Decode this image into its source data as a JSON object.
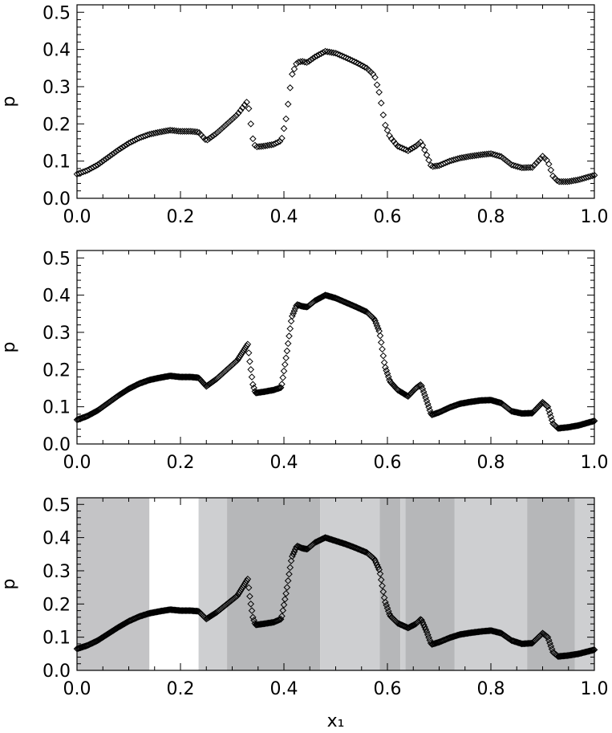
{
  "chart_data": [
    {
      "type": "scatter",
      "marker": "diamond-open",
      "ylabel": "p",
      "xlabel": "",
      "xlim": [
        0,
        1
      ],
      "ylim": [
        0,
        0.52
      ],
      "xticks": [
        "0.0",
        "0.2",
        "0.4",
        "0.6",
        "0.8",
        "1.0"
      ],
      "yticks": [
        "0.0",
        "0.1",
        "0.2",
        "0.3",
        "0.4",
        "0.5"
      ],
      "points_per_unit": 250,
      "profile": [
        [
          0,
          0.065
        ],
        [
          0.02,
          0.075
        ],
        [
          0.04,
          0.09
        ],
        [
          0.06,
          0.11
        ],
        [
          0.08,
          0.13
        ],
        [
          0.1,
          0.148
        ],
        [
          0.12,
          0.162
        ],
        [
          0.14,
          0.172
        ],
        [
          0.16,
          0.178
        ],
        [
          0.18,
          0.183
        ],
        [
          0.2,
          0.18
        ],
        [
          0.22,
          0.18
        ],
        [
          0.235,
          0.178
        ],
        [
          0.25,
          0.155
        ],
        [
          0.27,
          0.175
        ],
        [
          0.29,
          0.2
        ],
        [
          0.31,
          0.225
        ],
        [
          0.33,
          0.262
        ],
        [
          0.335,
          0.21
        ],
        [
          0.34,
          0.16
        ],
        [
          0.345,
          0.138
        ],
        [
          0.36,
          0.14
        ],
        [
          0.38,
          0.145
        ],
        [
          0.395,
          0.155
        ],
        [
          0.405,
          0.22
        ],
        [
          0.415,
          0.33
        ],
        [
          0.425,
          0.365
        ],
        [
          0.435,
          0.368
        ],
        [
          0.445,
          0.365
        ],
        [
          0.46,
          0.38
        ],
        [
          0.48,
          0.395
        ],
        [
          0.5,
          0.39
        ],
        [
          0.52,
          0.378
        ],
        [
          0.54,
          0.365
        ],
        [
          0.56,
          0.35
        ],
        [
          0.575,
          0.33
        ],
        [
          0.585,
          0.28
        ],
        [
          0.595,
          0.2
        ],
        [
          0.605,
          0.165
        ],
        [
          0.62,
          0.14
        ],
        [
          0.64,
          0.128
        ],
        [
          0.655,
          0.14
        ],
        [
          0.665,
          0.152
        ],
        [
          0.675,
          0.12
        ],
        [
          0.685,
          0.085
        ],
        [
          0.7,
          0.088
        ],
        [
          0.72,
          0.1
        ],
        [
          0.74,
          0.108
        ],
        [
          0.76,
          0.113
        ],
        [
          0.78,
          0.117
        ],
        [
          0.8,
          0.12
        ],
        [
          0.82,
          0.112
        ],
        [
          0.84,
          0.09
        ],
        [
          0.86,
          0.082
        ],
        [
          0.88,
          0.083
        ],
        [
          0.9,
          0.113
        ],
        [
          0.91,
          0.1
        ],
        [
          0.92,
          0.06
        ],
        [
          0.93,
          0.045
        ],
        [
          0.95,
          0.045
        ],
        [
          0.97,
          0.05
        ],
        [
          1.0,
          0.062
        ]
      ],
      "shaded_bands": []
    },
    {
      "type": "scatter",
      "marker": "diamond-open",
      "ylabel": "p",
      "xlabel": "",
      "xlim": [
        0,
        1
      ],
      "ylim": [
        0,
        0.52
      ],
      "xticks": [
        "0.0",
        "0.2",
        "0.4",
        "0.6",
        "0.8",
        "1.0"
      ],
      "yticks": [
        "0.0",
        "0.1",
        "0.2",
        "0.3",
        "0.4",
        "0.5"
      ],
      "points_per_unit": 500,
      "profile": [
        [
          0,
          0.065
        ],
        [
          0.02,
          0.075
        ],
        [
          0.04,
          0.09
        ],
        [
          0.06,
          0.11
        ],
        [
          0.08,
          0.13
        ],
        [
          0.1,
          0.148
        ],
        [
          0.12,
          0.162
        ],
        [
          0.14,
          0.172
        ],
        [
          0.16,
          0.178
        ],
        [
          0.18,
          0.183
        ],
        [
          0.2,
          0.18
        ],
        [
          0.22,
          0.18
        ],
        [
          0.235,
          0.178
        ],
        [
          0.25,
          0.155
        ],
        [
          0.27,
          0.175
        ],
        [
          0.29,
          0.2
        ],
        [
          0.31,
          0.225
        ],
        [
          0.33,
          0.268
        ],
        [
          0.335,
          0.21
        ],
        [
          0.34,
          0.16
        ],
        [
          0.345,
          0.137
        ],
        [
          0.36,
          0.14
        ],
        [
          0.38,
          0.145
        ],
        [
          0.395,
          0.152
        ],
        [
          0.405,
          0.24
        ],
        [
          0.415,
          0.34
        ],
        [
          0.425,
          0.375
        ],
        [
          0.435,
          0.37
        ],
        [
          0.445,
          0.368
        ],
        [
          0.46,
          0.385
        ],
        [
          0.48,
          0.4
        ],
        [
          0.5,
          0.392
        ],
        [
          0.52,
          0.38
        ],
        [
          0.54,
          0.368
        ],
        [
          0.56,
          0.355
        ],
        [
          0.575,
          0.335
        ],
        [
          0.585,
          0.3
        ],
        [
          0.595,
          0.21
        ],
        [
          0.605,
          0.168
        ],
        [
          0.62,
          0.145
        ],
        [
          0.64,
          0.128
        ],
        [
          0.655,
          0.15
        ],
        [
          0.665,
          0.16
        ],
        [
          0.675,
          0.12
        ],
        [
          0.685,
          0.078
        ],
        [
          0.7,
          0.085
        ],
        [
          0.72,
          0.098
        ],
        [
          0.74,
          0.108
        ],
        [
          0.76,
          0.113
        ],
        [
          0.78,
          0.117
        ],
        [
          0.8,
          0.118
        ],
        [
          0.82,
          0.11
        ],
        [
          0.84,
          0.088
        ],
        [
          0.86,
          0.082
        ],
        [
          0.88,
          0.083
        ],
        [
          0.9,
          0.112
        ],
        [
          0.91,
          0.1
        ],
        [
          0.92,
          0.055
        ],
        [
          0.93,
          0.042
        ],
        [
          0.95,
          0.045
        ],
        [
          0.97,
          0.05
        ],
        [
          1.0,
          0.062
        ]
      ],
      "shaded_bands": []
    },
    {
      "type": "scatter",
      "marker": "diamond-open",
      "ylabel": "p",
      "xlabel": "x₁",
      "xlim": [
        0,
        1
      ],
      "ylim": [
        0,
        0.52
      ],
      "xticks": [
        "0.0",
        "0.2",
        "0.4",
        "0.6",
        "0.8",
        "1.0"
      ],
      "yticks": [
        "0.0",
        "0.1",
        "0.2",
        "0.3",
        "0.4",
        "0.5"
      ],
      "points_per_unit": 500,
      "profile": [
        [
          0,
          0.065
        ],
        [
          0.02,
          0.075
        ],
        [
          0.04,
          0.09
        ],
        [
          0.06,
          0.11
        ],
        [
          0.08,
          0.13
        ],
        [
          0.1,
          0.148
        ],
        [
          0.12,
          0.162
        ],
        [
          0.14,
          0.172
        ],
        [
          0.16,
          0.178
        ],
        [
          0.18,
          0.183
        ],
        [
          0.2,
          0.18
        ],
        [
          0.22,
          0.18
        ],
        [
          0.235,
          0.178
        ],
        [
          0.25,
          0.155
        ],
        [
          0.27,
          0.175
        ],
        [
          0.29,
          0.2
        ],
        [
          0.31,
          0.225
        ],
        [
          0.33,
          0.275
        ],
        [
          0.335,
          0.21
        ],
        [
          0.34,
          0.16
        ],
        [
          0.345,
          0.137
        ],
        [
          0.36,
          0.14
        ],
        [
          0.38,
          0.145
        ],
        [
          0.395,
          0.155
        ],
        [
          0.405,
          0.24
        ],
        [
          0.415,
          0.34
        ],
        [
          0.425,
          0.375
        ],
        [
          0.435,
          0.368
        ],
        [
          0.445,
          0.365
        ],
        [
          0.46,
          0.385
        ],
        [
          0.48,
          0.4
        ],
        [
          0.5,
          0.39
        ],
        [
          0.52,
          0.38
        ],
        [
          0.54,
          0.368
        ],
        [
          0.56,
          0.355
        ],
        [
          0.575,
          0.335
        ],
        [
          0.585,
          0.3
        ],
        [
          0.595,
          0.21
        ],
        [
          0.605,
          0.165
        ],
        [
          0.62,
          0.142
        ],
        [
          0.64,
          0.128
        ],
        [
          0.655,
          0.14
        ],
        [
          0.665,
          0.155
        ],
        [
          0.675,
          0.12
        ],
        [
          0.685,
          0.078
        ],
        [
          0.7,
          0.085
        ],
        [
          0.72,
          0.098
        ],
        [
          0.74,
          0.108
        ],
        [
          0.76,
          0.113
        ],
        [
          0.78,
          0.117
        ],
        [
          0.8,
          0.12
        ],
        [
          0.82,
          0.112
        ],
        [
          0.84,
          0.09
        ],
        [
          0.86,
          0.08
        ],
        [
          0.88,
          0.082
        ],
        [
          0.9,
          0.112
        ],
        [
          0.91,
          0.1
        ],
        [
          0.92,
          0.055
        ],
        [
          0.93,
          0.042
        ],
        [
          0.95,
          0.045
        ],
        [
          0.97,
          0.05
        ],
        [
          1.0,
          0.062
        ]
      ],
      "shaded_bands": [
        {
          "x0": 0.0,
          "x1": 0.14,
          "color": "#c4c4c6"
        },
        {
          "x0": 0.14,
          "x1": 0.235,
          "color": "#ffffff"
        },
        {
          "x0": 0.235,
          "x1": 0.29,
          "color": "#cecfd1"
        },
        {
          "x0": 0.29,
          "x1": 0.47,
          "color": "#b6b7b9"
        },
        {
          "x0": 0.47,
          "x1": 0.585,
          "color": "#cecfd1"
        },
        {
          "x0": 0.585,
          "x1": 0.625,
          "color": "#b6b7b9"
        },
        {
          "x0": 0.625,
          "x1": 0.635,
          "color": "#cecfd1"
        },
        {
          "x0": 0.635,
          "x1": 0.73,
          "color": "#b6b7b9"
        },
        {
          "x0": 0.73,
          "x1": 0.87,
          "color": "#cecfd1"
        },
        {
          "x0": 0.87,
          "x1": 0.962,
          "color": "#b6b7b9"
        },
        {
          "x0": 0.962,
          "x1": 1.0,
          "color": "#cecfd1"
        }
      ]
    }
  ]
}
